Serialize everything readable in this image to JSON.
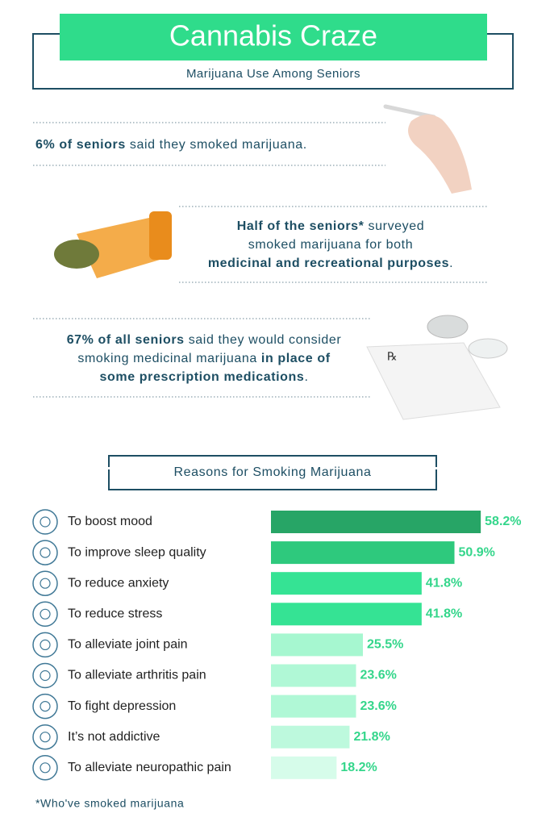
{
  "header": {
    "title": "Cannabis Craze",
    "subtitle": "Marijuana Use Among Seniors"
  },
  "facts": [
    {
      "lines": [
        [
          {
            "text": "6% of seniors",
            "bold": true
          },
          {
            "text": " said they smoked marijuana.",
            "bold": false
          }
        ]
      ]
    },
    {
      "lines": [
        [
          {
            "text": "Half of the seniors*",
            "bold": true
          },
          {
            "text": " surveyed",
            "bold": false
          }
        ],
        [
          {
            "text": "smoked marijuana for both",
            "bold": false
          }
        ],
        [
          {
            "text": "medicinal and recreational purposes",
            "bold": true
          },
          {
            "text": ".",
            "bold": false
          }
        ]
      ]
    },
    {
      "lines": [
        [
          {
            "text": "67% of all seniors",
            "bold": true
          },
          {
            "text": " said they would consider",
            "bold": false
          }
        ],
        [
          {
            "text": "smoking medicinal marijuana ",
            "bold": false
          },
          {
            "text": "in place of",
            "bold": true
          }
        ],
        [
          {
            "text": "some prescription medications",
            "bold": true
          },
          {
            "text": ".",
            "bold": false
          }
        ]
      ]
    }
  ],
  "chart_data": {
    "type": "bar",
    "orientation": "horizontal",
    "title": "Reasons for Smoking Marijuana",
    "categories": [
      "To boost mood",
      "To improve sleep quality",
      "To reduce anxiety",
      "To reduce stress",
      "To alleviate joint pain",
      "To alleviate arthritis pain",
      "To fight depression",
      "It’s not addictive",
      "To alleviate neuropathic pain"
    ],
    "values": [
      58.2,
      50.9,
      41.8,
      41.8,
      25.5,
      23.6,
      23.6,
      21.8,
      18.2
    ],
    "value_labels": [
      "58.2%",
      "50.9%",
      "41.8%",
      "41.8%",
      "25.5%",
      "23.6%",
      "23.6%",
      "21.8%",
      "18.2%"
    ],
    "colors": [
      "#27a566",
      "#2ec97d",
      "#35e394",
      "#35e394",
      "#a6f7d0",
      "#b0f8d6",
      "#b0f8d6",
      "#bdf9dd",
      "#d6fcea"
    ],
    "label_color": "#34d68b"
  },
  "footnote": "*Who've smoked marijuana"
}
